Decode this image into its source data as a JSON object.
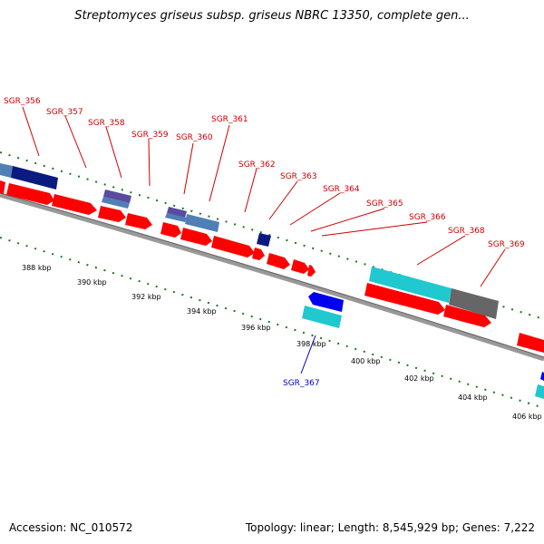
{
  "title": "Streptomyces griseus subsp. griseus NBRC 13350, complete gen...",
  "footer": {
    "accession": "Accession: NC_010572",
    "topology": "Topology: linear; Length: 8,545,929 bp; Genes: 7,222"
  },
  "colors": {
    "forward_gene": "#ff0000",
    "reverse_gene": "#0000ff",
    "label_forward": "#cc0000",
    "label_reverse": "#0000cc",
    "tick": "#1a7a1a",
    "backbone": "#888888"
  },
  "ruler_labels": [
    "388 kbp",
    "390 kbp",
    "392 kbp",
    "394 kbp",
    "396 kbp",
    "398 kbp",
    "400 kbp",
    "402 kbp",
    "404 kbp",
    "406 kbp"
  ],
  "gene_labels": [
    "SGR_356",
    "SGR_357",
    "SGR_358",
    "SGR_359",
    "SGR_360",
    "SGR_361",
    "SGR_362",
    "SGR_363",
    "SGR_364",
    "SGR_365",
    "SGR_366",
    "SGR_368",
    "SGR_369",
    "SGR_367"
  ]
}
